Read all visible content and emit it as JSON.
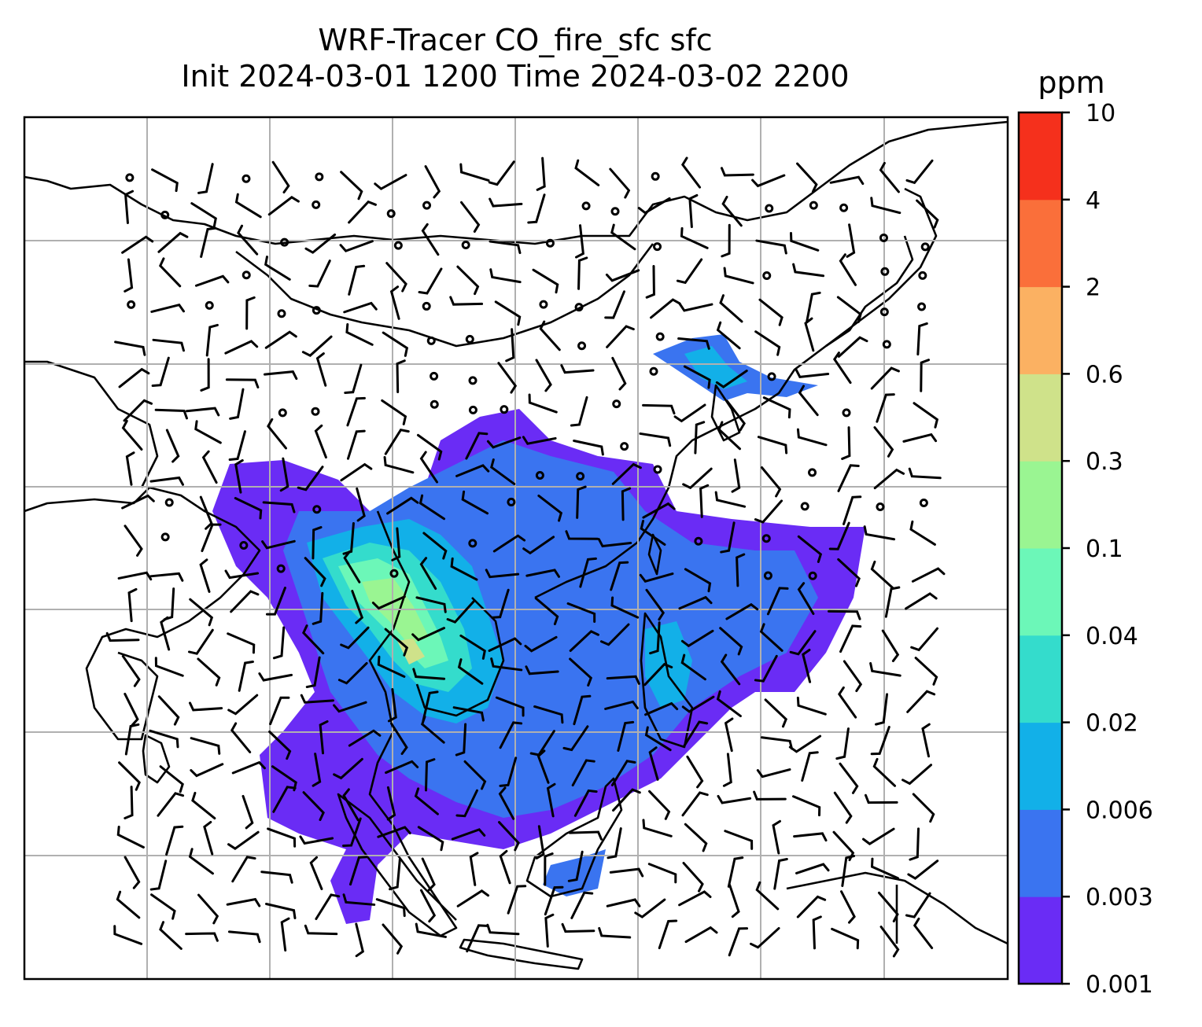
{
  "title": {
    "line1": "WRF-Tracer CO_fire_sfc sfc",
    "line2": "Init 2024-03-01 1200 Time 2024-03-02 2200"
  },
  "colorbar": {
    "units": "ppm",
    "levels": [
      "0.001",
      "0.003",
      "0.006",
      "0.02",
      "0.04",
      "0.1",
      "0.3",
      "0.6",
      "2",
      "4",
      "10"
    ],
    "colors": [
      "#6a2cf5",
      "#3a74f0",
      "#12b0e8",
      "#34dccc",
      "#6cf7b8",
      "#9af592",
      "#cfe28a",
      "#fbb162",
      "#fa6f3a",
      "#f5301c"
    ]
  },
  "map": {
    "coastline_color": "#000000",
    "grid_color": "#b0b0b0"
  }
}
